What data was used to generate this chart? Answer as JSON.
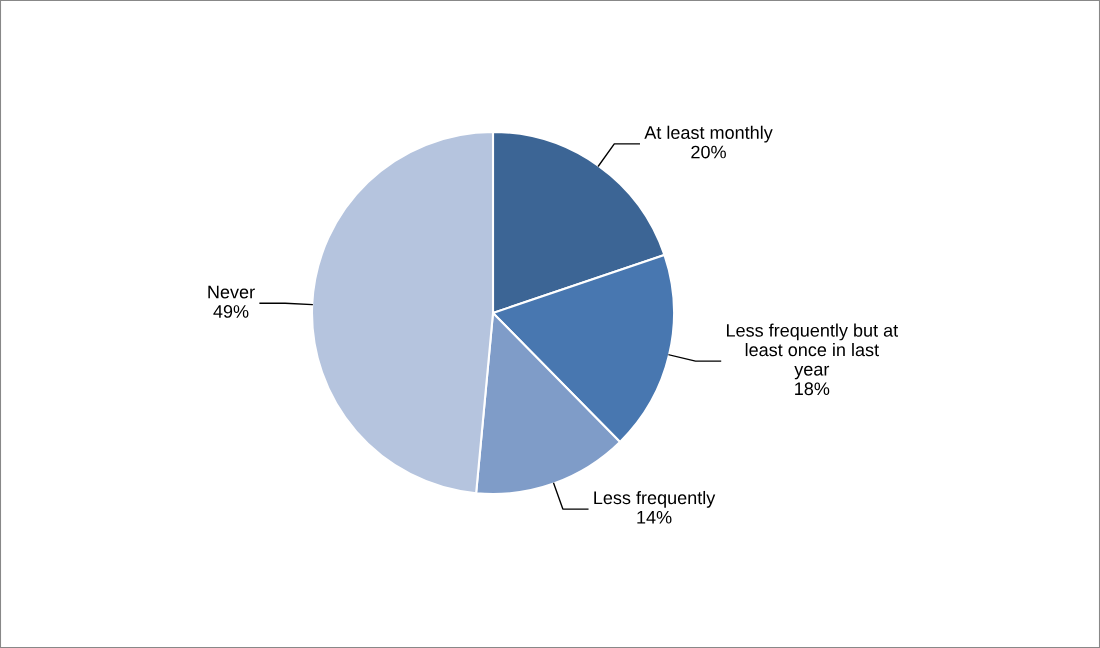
{
  "chart_data": {
    "type": "pie",
    "categories": [
      "At least monthly",
      "Less frequently but at least once in last year",
      "Less frequently",
      "Never"
    ],
    "values": [
      20,
      18,
      14,
      49
    ],
    "value_labels": [
      "20%",
      "18%",
      "14%",
      "49%"
    ],
    "colors": [
      "#3c6595",
      "#4877b0",
      "#7f9cc8",
      "#b5c4de"
    ],
    "legend": false
  }
}
